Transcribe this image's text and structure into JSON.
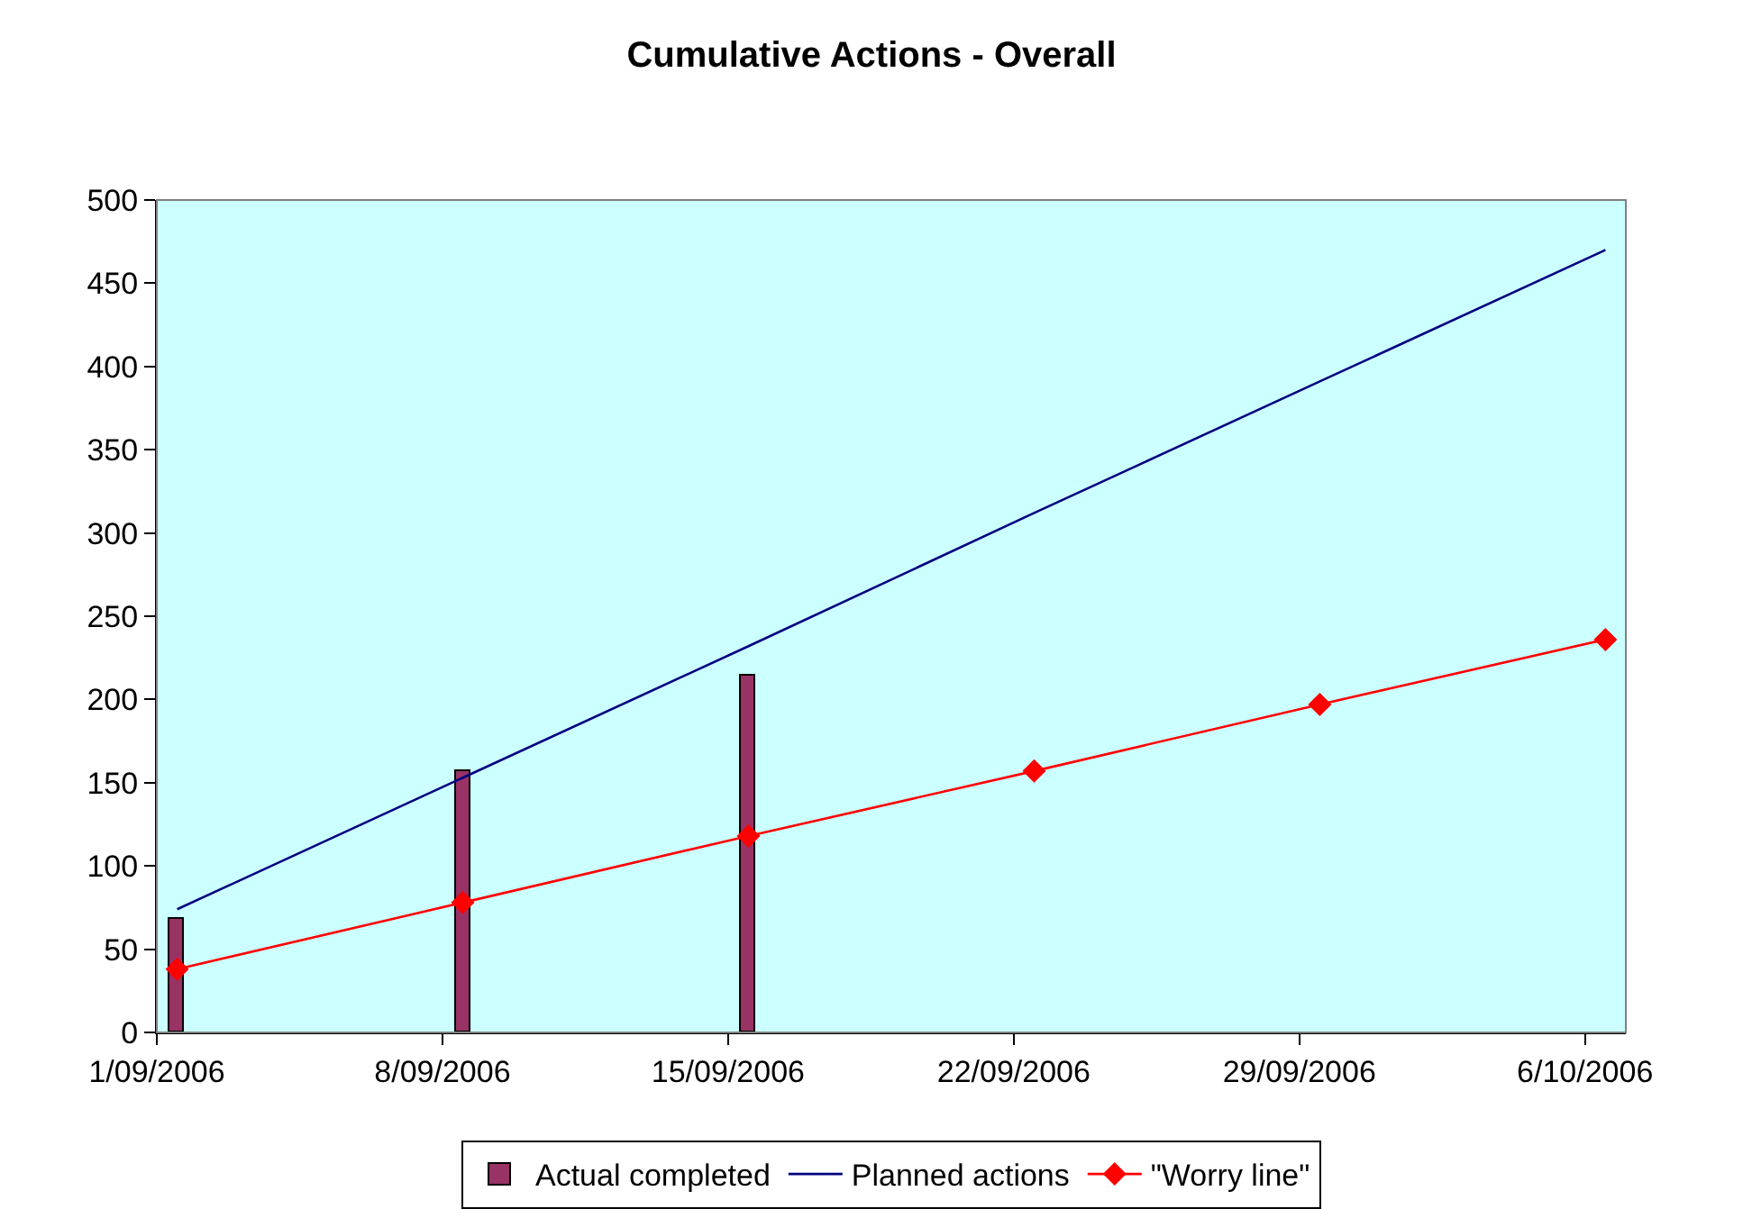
{
  "chart_data": {
    "type": "line",
    "title": "Cumulative Actions - Overall",
    "xlim": [
      "2006-09-01",
      "2006-10-07"
    ],
    "xticks": [
      {
        "value": "2006-09-01",
        "label": "1/09/2006"
      },
      {
        "value": "2006-09-08",
        "label": "8/09/2006"
      },
      {
        "value": "2006-09-15",
        "label": "15/09/2006"
      },
      {
        "value": "2006-09-22",
        "label": "22/09/2006"
      },
      {
        "value": "2006-09-29",
        "label": "29/09/2006"
      },
      {
        "value": "2006-10-06",
        "label": "6/10/2006"
      }
    ],
    "ylim": [
      0,
      500
    ],
    "yticks": [
      0,
      50,
      100,
      150,
      200,
      250,
      300,
      350,
      400,
      450,
      500
    ],
    "grid": false,
    "legend": "bottom",
    "series": [
      {
        "name": "Actual completed",
        "type": "bar",
        "color": "#993366",
        "x": [
          "2006-09-01T12:00",
          "2006-09-08T12:00",
          "2006-09-15T12:00"
        ],
        "values": [
          68,
          157,
          214
        ]
      },
      {
        "name": "Planned actions",
        "color": "#000080",
        "marker": "none",
        "x": [
          "2006-09-01T12:00",
          "2006-09-08T12:00",
          "2006-09-15T12:00",
          "2006-09-22T12:00",
          "2006-09-29T12:00",
          "2006-10-06T12:00"
        ],
        "values": [
          74,
          153,
          232,
          312,
          391,
          470
        ]
      },
      {
        "name": "\"Worry line\"",
        "color": "#ff0000",
        "marker": "diamond",
        "x": [
          "2006-09-01T12:00",
          "2006-09-08T12:00",
          "2006-09-15T12:00",
          "2006-09-22T12:00",
          "2006-09-29T12:00",
          "2006-10-06T12:00"
        ],
        "values": [
          38,
          78,
          118,
          157,
          197,
          236
        ]
      }
    ]
  }
}
